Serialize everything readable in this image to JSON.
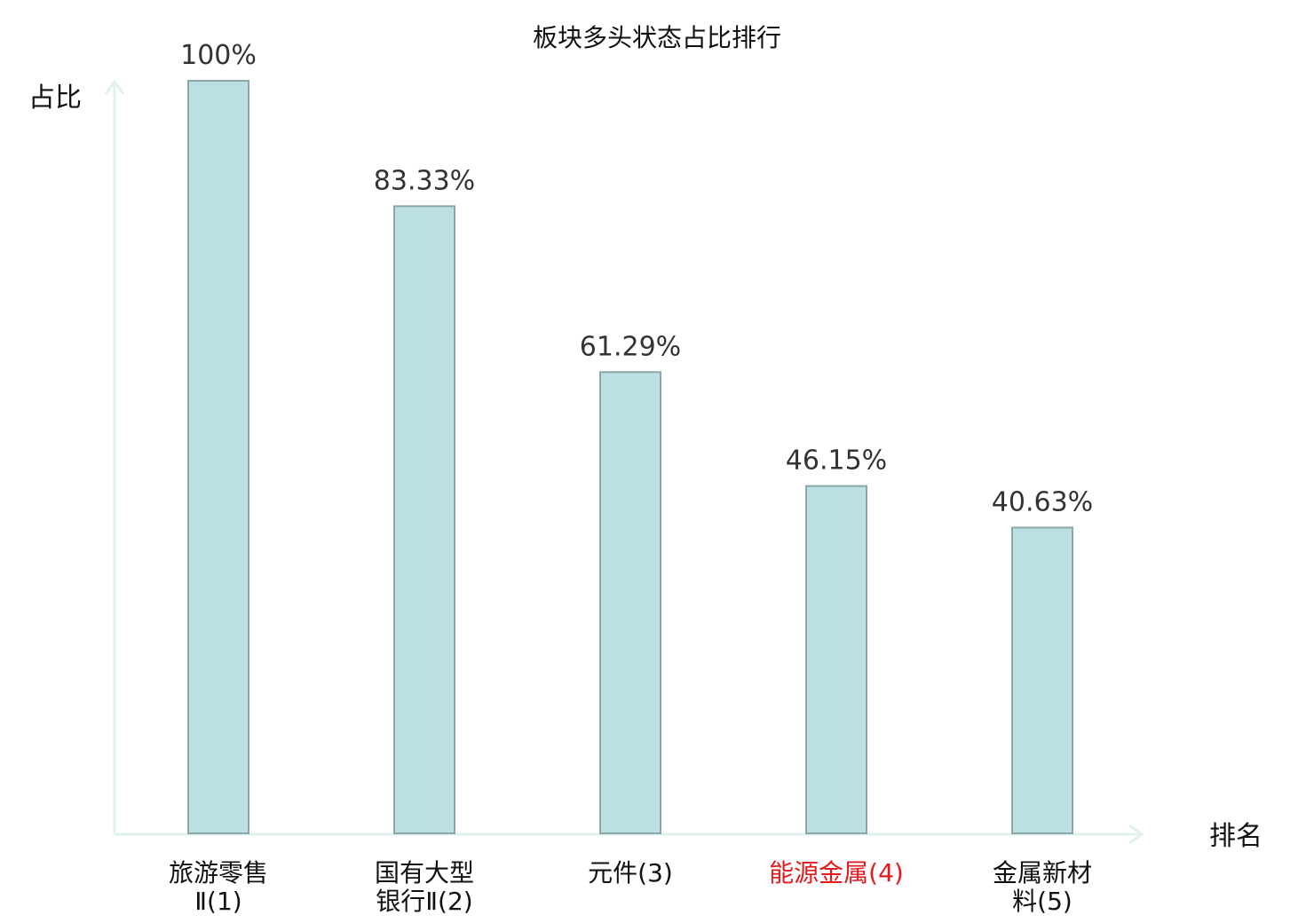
{
  "chart_data": {
    "type": "bar",
    "title": "板块多头状态占比排行",
    "xlabel": "排名",
    "ylabel": "占比",
    "ylim": [
      0,
      100
    ],
    "grid": false,
    "categories": [
      {
        "lines": [
          "旅游零售",
          "Ⅱ(1)"
        ],
        "highlight": false
      },
      {
        "lines": [
          "国有大型",
          "银行Ⅱ(2)"
        ],
        "highlight": false
      },
      {
        "lines": [
          "元件(3)"
        ],
        "highlight": false
      },
      {
        "lines": [
          "能源金属(4)"
        ],
        "highlight": true
      },
      {
        "lines": [
          "金属新材",
          "料(5)"
        ],
        "highlight": false
      }
    ],
    "values": [
      100,
      83.33,
      61.29,
      46.15,
      40.63
    ],
    "value_labels": [
      "100%",
      "83.33%",
      "61.29%",
      "46.15%",
      "40.63%"
    ],
    "colors": {
      "bar_fill": "#bce0e1",
      "bar_stroke": "#8aa6a8",
      "axis": "#e0f2ef",
      "highlight_text": "#e31a1c",
      "normal_text": "#111111"
    }
  }
}
